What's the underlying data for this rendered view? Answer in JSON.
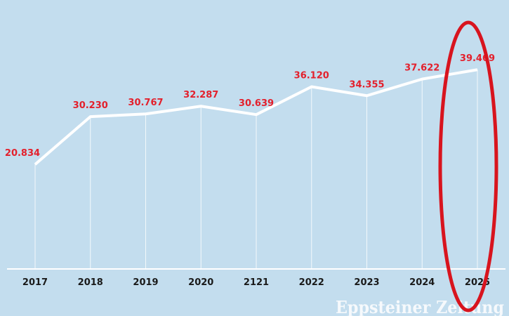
{
  "chart_data": {
    "type": "line",
    "categories": [
      "2017",
      "2018",
      "2019",
      "2020",
      "2121",
      "2022",
      "2023",
      "2024",
      "2025"
    ],
    "values": [
      20834,
      30230,
      30767,
      32287,
      30639,
      36120,
      34355,
      37622,
      39469
    ],
    "value_labels": [
      "20.834",
      "30.230",
      "30.767",
      "32.287",
      "30.639",
      "36.120",
      "34.355",
      "37.622",
      "39.469"
    ],
    "ylim": [
      0,
      40000
    ],
    "grid": "vertical drop lines",
    "line_color": "#ffffff",
    "label_color": "#e3202c",
    "highlight": {
      "category": "2025",
      "shape": "ellipse",
      "color": "#d8141e"
    },
    "watermark": "Eppsteiner Zeitung"
  }
}
